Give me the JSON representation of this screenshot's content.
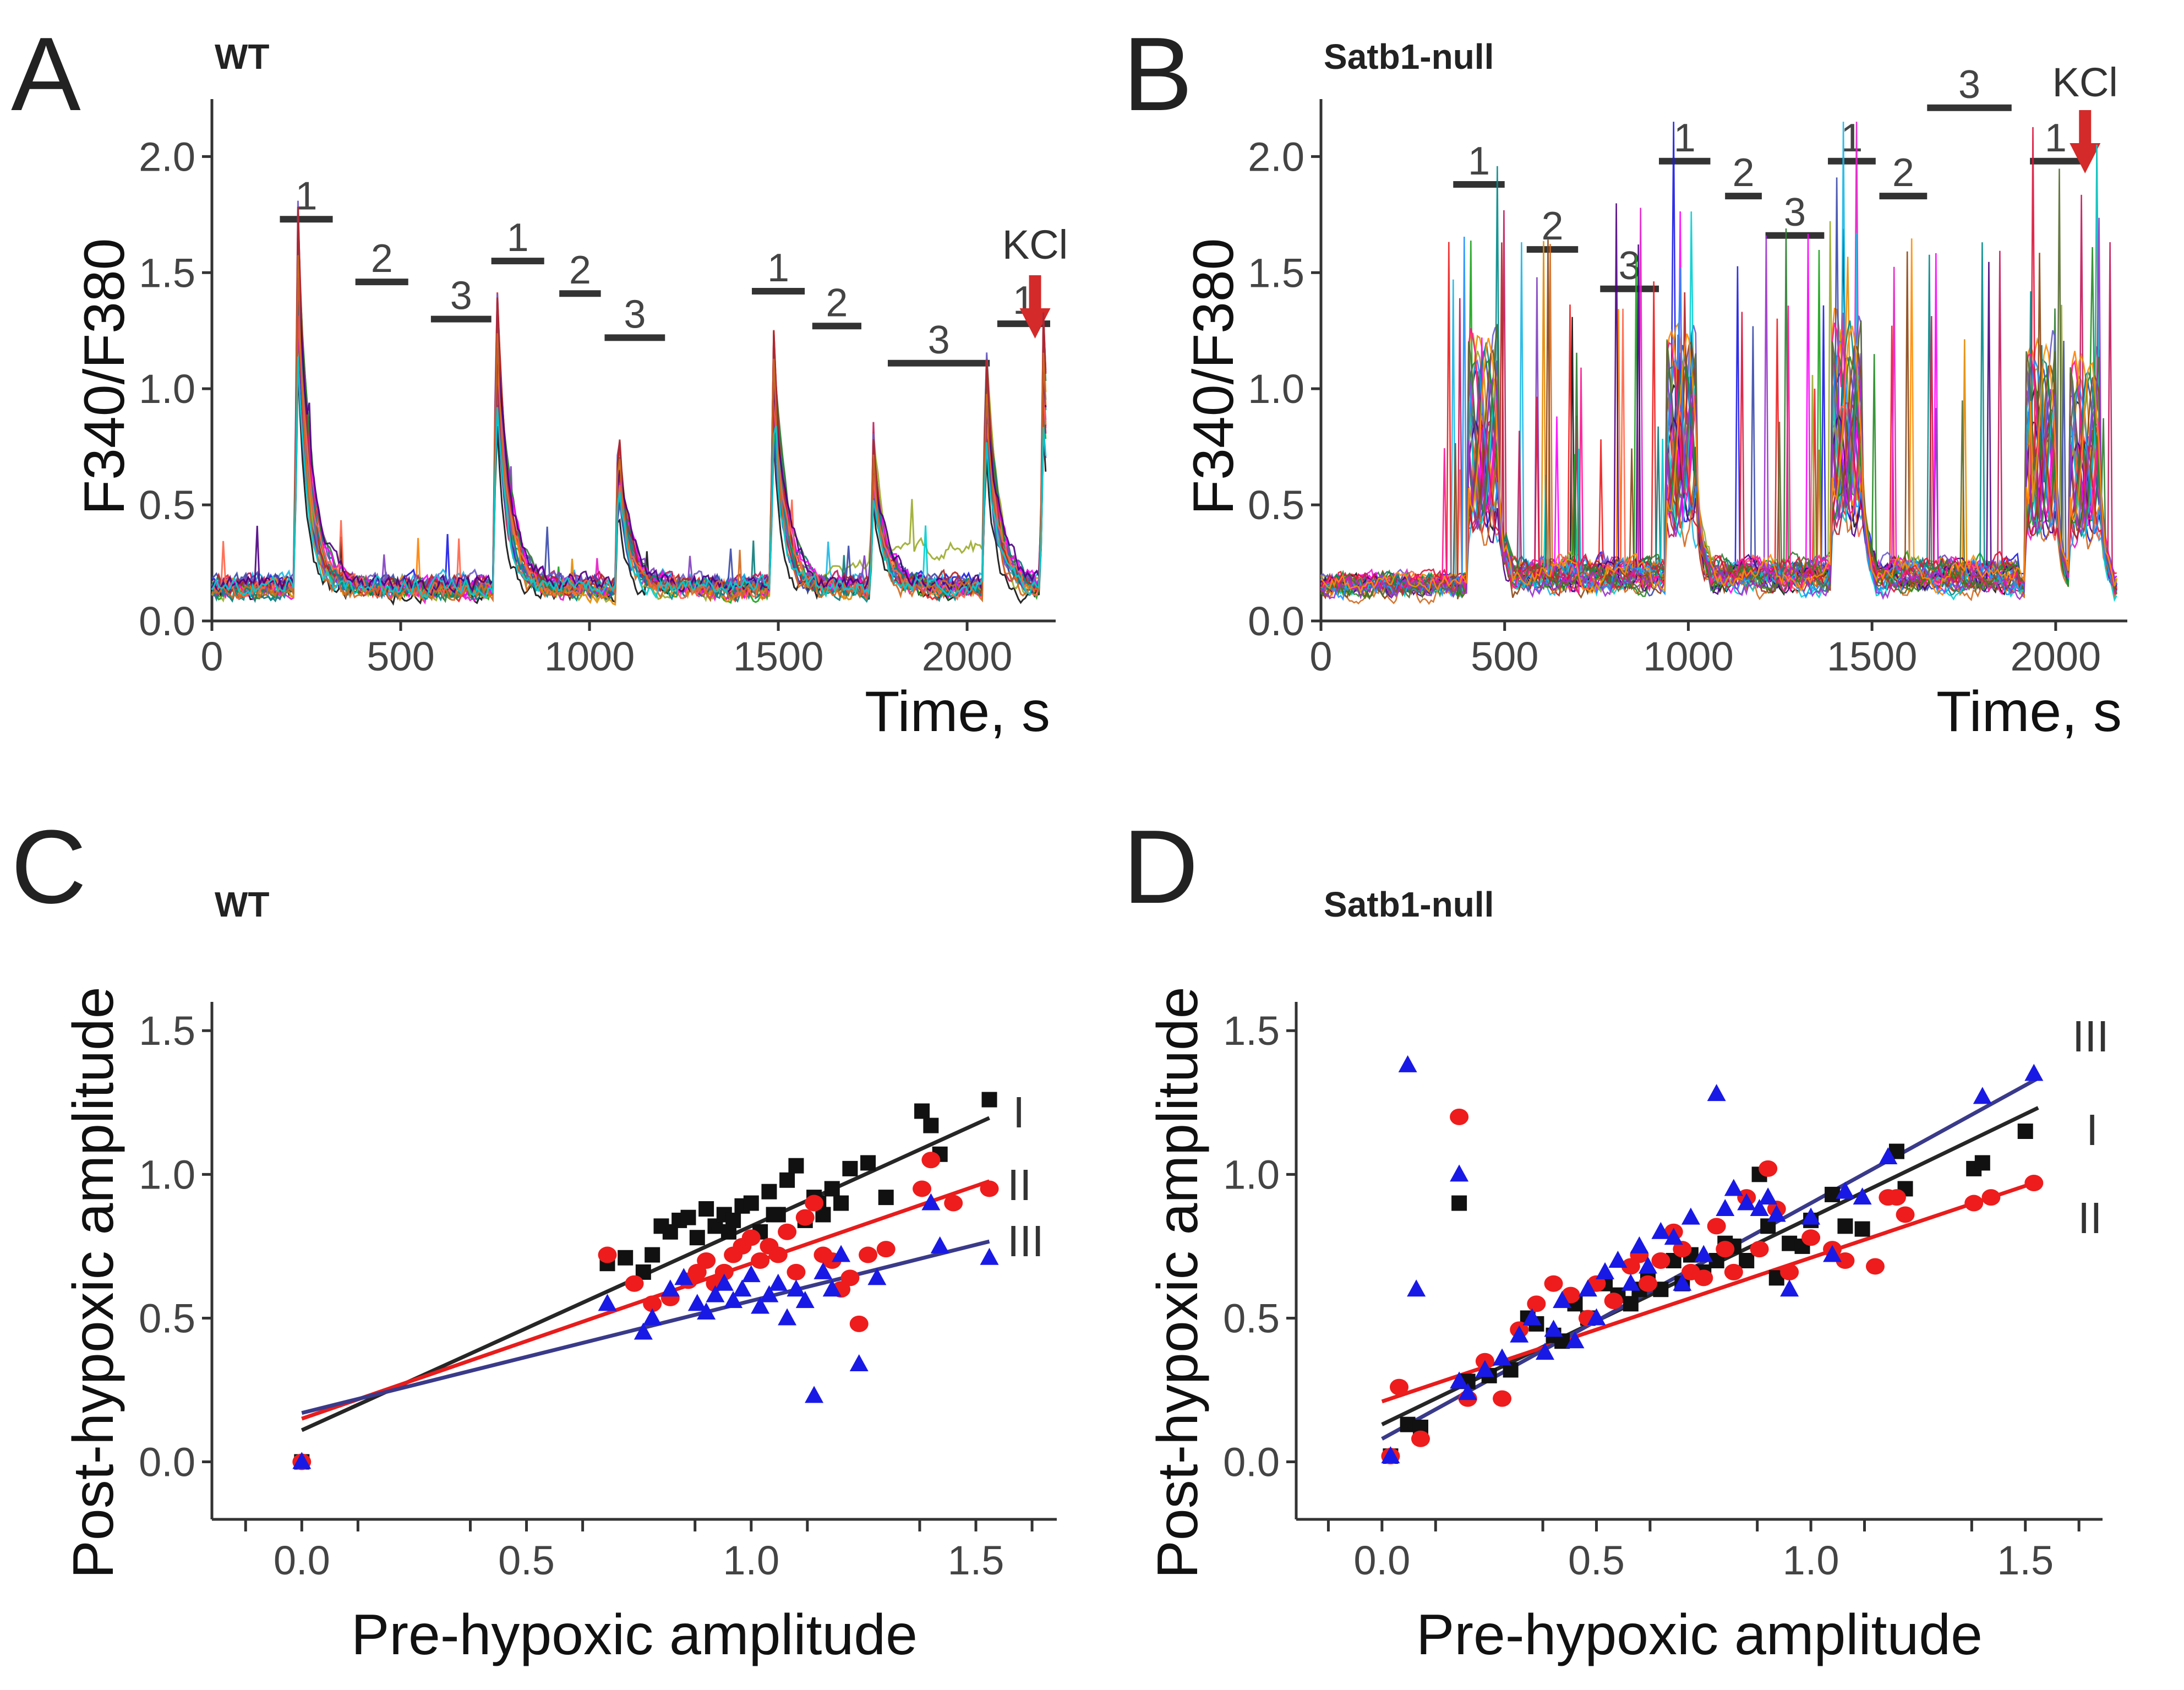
{
  "colors": {
    "black": "#111111",
    "red": "#ee1c1c",
    "blue": "#1919e6",
    "fit_black": "#262626",
    "fit_red": "#e81c1c",
    "fit_blue": "#3a3a8a",
    "arrow": "#d42a2a",
    "axis": "#333333"
  },
  "chart_data": [
    {
      "type": "line",
      "panel": "A",
      "title": "WT",
      "xlabel": "Time, s",
      "ylabel": "F340/F380",
      "xlim": [
        0,
        2220
      ],
      "ylim": [
        0,
        2.2
      ],
      "xticks": [
        "0",
        "500",
        "1000",
        "1500",
        "2000"
      ],
      "yticks": [
        "0.0",
        "0.5",
        "1.0",
        "1.5",
        "2.0"
      ],
      "kcl": {
        "label": "KCl",
        "t": 2180
      },
      "stimuli": [
        {
          "label": "1",
          "t0": 180,
          "t1": 320,
          "y": 1.73
        },
        {
          "label": "2",
          "t0": 380,
          "t1": 520,
          "y": 1.46
        },
        {
          "label": "3",
          "t0": 580,
          "t1": 740,
          "y": 1.3
        },
        {
          "label": "1",
          "t0": 740,
          "t1": 880,
          "y": 1.55
        },
        {
          "label": "2",
          "t0": 920,
          "t1": 1030,
          "y": 1.41
        },
        {
          "label": "3",
          "t0": 1040,
          "t1": 1200,
          "y": 1.22
        },
        {
          "label": "1",
          "t0": 1430,
          "t1": 1570,
          "y": 1.42
        },
        {
          "label": "2",
          "t0": 1590,
          "t1": 1720,
          "y": 1.27
        },
        {
          "label": "3",
          "t0": 1790,
          "t1": 2060,
          "y": 1.11
        },
        {
          "label": "1",
          "t0": 2080,
          "t1": 2220,
          "y": 1.28
        }
      ],
      "peaks": [
        {
          "t": 225,
          "amp": 1.52
        },
        {
          "t": 752,
          "amp": 1.22
        },
        {
          "t": 1075,
          "amp": 0.6
        },
        {
          "t": 1485,
          "amp": 1.02
        },
        {
          "t": 1750,
          "amp": 0.58
        },
        {
          "t": 2048,
          "amp": 0.95
        },
        {
          "t": 2200,
          "amp": 1.02
        }
      ],
      "baseline": 0.15,
      "n_traces": 22
    },
    {
      "type": "line",
      "panel": "B",
      "title": "Satb1-null",
      "xlabel": "Time, s",
      "ylabel": "F340/F380",
      "xlim": [
        0,
        2180
      ],
      "ylim": [
        0,
        2.2
      ],
      "xticks": [
        "0",
        "500",
        "1000",
        "1500",
        "2000"
      ],
      "yticks": [
        "0.0",
        "0.5",
        "1.0",
        "1.5",
        "2.0"
      ],
      "kcl": {
        "label": "KCl",
        "t": 2080
      },
      "stimuli": [
        {
          "label": "1",
          "t0": 360,
          "t1": 500,
          "y": 1.88
        },
        {
          "label": "2",
          "t0": 560,
          "t1": 700,
          "y": 1.6
        },
        {
          "label": "3",
          "t0": 760,
          "t1": 920,
          "y": 1.43
        },
        {
          "label": "1",
          "t0": 920,
          "t1": 1060,
          "y": 1.98
        },
        {
          "label": "2",
          "t0": 1100,
          "t1": 1200,
          "y": 1.83
        },
        {
          "label": "3",
          "t0": 1210,
          "t1": 1370,
          "y": 1.66
        },
        {
          "label": "1",
          "t0": 1380,
          "t1": 1510,
          "y": 1.98
        },
        {
          "label": "2",
          "t0": 1520,
          "t1": 1650,
          "y": 1.83
        },
        {
          "label": "3",
          "t0": 1650,
          "t1": 1880,
          "y": 2.21
        },
        {
          "label": "1",
          "t0": 1930,
          "t1": 2070,
          "y": 1.98
        }
      ],
      "plateaus": [
        {
          "t0": 400,
          "t1": 480,
          "amp": 0.9
        },
        {
          "t0": 940,
          "t1": 1020,
          "amp": 0.85
        },
        {
          "t0": 1390,
          "t1": 1470,
          "amp": 0.9
        },
        {
          "t0": 1920,
          "t1": 2000,
          "amp": 0.85
        },
        {
          "t0": 2040,
          "t1": 2120,
          "amp": 0.8
        }
      ],
      "baseline": 0.15,
      "n_traces": 30
    },
    {
      "type": "scatter",
      "panel": "C",
      "title": "WT",
      "xlabel": "Pre-hypoxic amplitude",
      "ylabel": "Post-hypoxic amplitude",
      "xlim": [
        -0.2,
        1.68
      ],
      "ylim": [
        -0.2,
        1.6
      ],
      "xticks": [
        "0.0",
        "0.5",
        "1.0",
        "1.5"
      ],
      "yticks": [
        "0.0",
        "0.5",
        "1.0",
        "1.5"
      ],
      "series": [
        {
          "name": "I",
          "marker": "square",
          "color": "black",
          "x": [
            0.0,
            0.68,
            0.72,
            0.76,
            0.78,
            0.82,
            0.84,
            0.86,
            0.88,
            0.9,
            0.92,
            0.94,
            0.96,
            0.98,
            1.0,
            1.02,
            1.04,
            1.06,
            1.08,
            1.1,
            1.12,
            1.14,
            1.16,
            1.18,
            1.2,
            1.22,
            1.26,
            1.3,
            1.38,
            1.4,
            1.42,
            1.53,
            0.95,
            1.05,
            1.15,
            0.8
          ],
          "y": [
            0.0,
            0.69,
            0.71,
            0.66,
            0.72,
            0.8,
            0.84,
            0.85,
            0.78,
            0.88,
            0.82,
            0.86,
            0.84,
            0.89,
            0.9,
            0.8,
            0.94,
            0.86,
            0.98,
            1.03,
            0.84,
            0.92,
            0.86,
            0.95,
            0.9,
            1.02,
            1.04,
            0.92,
            1.22,
            1.17,
            1.07,
            1.26,
            0.8,
            0.86,
            0.9,
            0.82
          ]
        },
        {
          "name": "II",
          "marker": "circle",
          "color": "red",
          "x": [
            0.0,
            0.68,
            0.74,
            0.78,
            0.82,
            0.86,
            0.88,
            0.9,
            0.92,
            0.94,
            0.96,
            0.98,
            1.0,
            1.02,
            1.04,
            1.06,
            1.08,
            1.1,
            1.12,
            1.14,
            1.16,
            1.18,
            1.2,
            1.22,
            1.24,
            1.26,
            1.3,
            1.38,
            1.4,
            1.45,
            1.53
          ],
          "y": [
            0.0,
            0.72,
            0.62,
            0.55,
            0.57,
            0.63,
            0.66,
            0.7,
            0.62,
            0.66,
            0.72,
            0.75,
            0.78,
            0.7,
            0.75,
            0.72,
            0.8,
            0.66,
            0.85,
            0.9,
            0.72,
            0.7,
            0.6,
            0.64,
            0.48,
            0.72,
            0.74,
            0.95,
            1.05,
            0.9,
            0.95
          ]
        },
        {
          "name": "III",
          "marker": "triangle",
          "color": "blue",
          "x": [
            0.0,
            0.68,
            0.76,
            0.78,
            0.82,
            0.85,
            0.88,
            0.9,
            0.92,
            0.94,
            0.96,
            0.98,
            1.0,
            1.02,
            1.04,
            1.06,
            1.08,
            1.1,
            1.12,
            1.14,
            1.16,
            1.18,
            1.2,
            1.24,
            1.28,
            1.4,
            1.42,
            1.53
          ],
          "y": [
            0.0,
            0.55,
            0.45,
            0.5,
            0.6,
            0.64,
            0.55,
            0.52,
            0.58,
            0.62,
            0.56,
            0.6,
            0.65,
            0.54,
            0.58,
            0.62,
            0.5,
            0.6,
            0.56,
            0.23,
            0.66,
            0.6,
            0.72,
            0.34,
            0.64,
            0.9,
            0.75,
            0.71
          ]
        }
      ],
      "fits": [
        {
          "name": "I",
          "color": "black",
          "slope": 0.71,
          "intercept": 0.11
        },
        {
          "name": "II",
          "color": "red",
          "slope": 0.54,
          "intercept": 0.15
        },
        {
          "name": "III",
          "color": "blue",
          "slope": 0.39,
          "intercept": 0.17
        }
      ]
    },
    {
      "type": "scatter",
      "panel": "D",
      "title": "Satb1-null",
      "xlabel": "Pre-hypoxic amplitude",
      "ylabel": "Post-hypoxic amplitude",
      "xlim": [
        -0.2,
        1.68
      ],
      "ylim": [
        -0.2,
        1.6
      ],
      "xticks": [
        "0.0",
        "0.5",
        "1.0",
        "1.5"
      ],
      "yticks": [
        "0.0",
        "0.5",
        "1.0",
        "1.5"
      ],
      "series": [
        {
          "name": "I",
          "marker": "square",
          "color": "black",
          "x": [
            0.02,
            0.06,
            0.09,
            0.18,
            0.2,
            0.25,
            0.3,
            0.34,
            0.36,
            0.4,
            0.42,
            0.45,
            0.48,
            0.52,
            0.55,
            0.58,
            0.6,
            0.62,
            0.65,
            0.68,
            0.7,
            0.72,
            0.75,
            0.78,
            0.8,
            0.82,
            0.85,
            0.88,
            0.9,
            0.92,
            0.95,
            0.98,
            1.0,
            1.05,
            1.08,
            1.12,
            1.2,
            1.22,
            1.38,
            1.4,
            1.5
          ],
          "y": [
            0.02,
            0.13,
            0.12,
            0.9,
            0.28,
            0.3,
            0.32,
            0.5,
            0.48,
            0.44,
            0.42,
            0.55,
            0.5,
            0.62,
            0.58,
            0.55,
            0.6,
            0.64,
            0.6,
            0.7,
            0.62,
            0.72,
            0.66,
            0.7,
            0.76,
            0.75,
            0.7,
            1.0,
            0.82,
            0.64,
            0.76,
            0.75,
            0.84,
            0.93,
            0.82,
            0.81,
            1.08,
            0.95,
            1.02,
            1.04,
            1.15
          ]
        },
        {
          "name": "II",
          "marker": "circle",
          "color": "red",
          "x": [
            0.02,
            0.04,
            0.09,
            0.18,
            0.2,
            0.24,
            0.28,
            0.32,
            0.36,
            0.4,
            0.44,
            0.48,
            0.5,
            0.54,
            0.58,
            0.6,
            0.62,
            0.65,
            0.68,
            0.7,
            0.72,
            0.75,
            0.78,
            0.8,
            0.82,
            0.85,
            0.88,
            0.9,
            0.92,
            0.95,
            1.0,
            1.05,
            1.08,
            1.15,
            1.18,
            1.2,
            1.22,
            1.38,
            1.42,
            1.52
          ],
          "y": [
            0.02,
            0.26,
            0.08,
            1.2,
            0.22,
            0.35,
            0.22,
            0.46,
            0.55,
            0.62,
            0.58,
            0.5,
            0.62,
            0.56,
            0.68,
            0.72,
            0.62,
            0.7,
            0.8,
            0.74,
            0.66,
            0.64,
            0.82,
            0.74,
            0.66,
            0.92,
            0.74,
            1.02,
            0.88,
            0.66,
            0.78,
            0.74,
            0.7,
            0.68,
            0.92,
            0.92,
            0.86,
            0.9,
            0.92,
            0.97
          ]
        },
        {
          "name": "III",
          "marker": "triangle",
          "color": "blue",
          "x": [
            0.02,
            0.06,
            0.08,
            0.18,
            0.2,
            0.24,
            0.28,
            0.32,
            0.35,
            0.38,
            0.4,
            0.42,
            0.45,
            0.48,
            0.5,
            0.52,
            0.55,
            0.58,
            0.6,
            0.62,
            0.65,
            0.68,
            0.7,
            0.72,
            0.75,
            0.78,
            0.8,
            0.82,
            0.85,
            0.88,
            0.9,
            0.92,
            0.95,
            1.0,
            1.05,
            1.08,
            1.12,
            1.18,
            1.4,
            1.52,
            0.18
          ],
          "y": [
            0.02,
            1.38,
            0.6,
            0.28,
            0.24,
            0.32,
            0.36,
            0.44,
            0.5,
            0.38,
            0.46,
            0.56,
            0.42,
            0.6,
            0.5,
            0.66,
            0.7,
            0.62,
            0.75,
            0.68,
            0.8,
            0.78,
            0.62,
            0.85,
            0.72,
            1.28,
            0.88,
            0.95,
            0.9,
            0.88,
            0.92,
            0.86,
            0.6,
            0.85,
            0.72,
            0.94,
            0.92,
            1.06,
            1.27,
            1.35,
            1.0
          ]
        }
      ],
      "fits": [
        {
          "name": "I",
          "color": "black",
          "slope": 0.72,
          "intercept": 0.13
        },
        {
          "name": "II",
          "color": "red",
          "slope": 0.5,
          "intercept": 0.21
        },
        {
          "name": "III",
          "color": "blue",
          "slope": 0.82,
          "intercept": 0.08
        }
      ]
    }
  ]
}
